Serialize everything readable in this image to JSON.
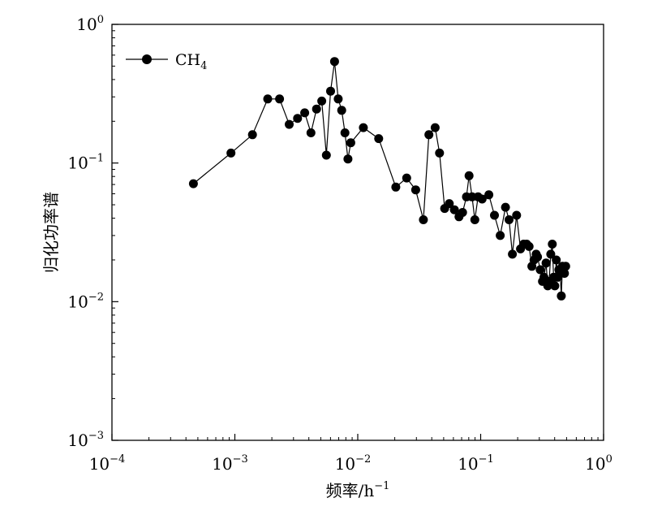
{
  "chart_data": {
    "type": "scatter",
    "mode": "line-with-markers",
    "x_scale": "log",
    "y_scale": "log",
    "xlim": [
      0.0001,
      1
    ],
    "ylim": [
      0.001,
      1
    ],
    "xlabel": "频率/h",
    "xlabel_exponent": "−1",
    "ylabel": "归化功率谱",
    "grid": false,
    "legend_position": "top-left",
    "x_ticks": [
      {
        "base": "10",
        "exp": "−4"
      },
      {
        "base": "10",
        "exp": "−3"
      },
      {
        "base": "10",
        "exp": "−2"
      },
      {
        "base": "10",
        "exp": "−1"
      },
      {
        "base": "10",
        "exp": "0"
      }
    ],
    "y_ticks": [
      {
        "base": "10",
        "exp": "−3"
      },
      {
        "base": "10",
        "exp": "−2"
      },
      {
        "base": "10",
        "exp": "−1"
      },
      {
        "base": "10",
        "exp": "0"
      }
    ],
    "series": [
      {
        "name": "CH",
        "name_subscript": "4",
        "color": "#000000",
        "marker": "filled-circle",
        "x": [
          0.00046,
          0.00093,
          0.00139,
          0.00185,
          0.00231,
          0.00277,
          0.00324,
          0.0037,
          0.00416,
          0.00462,
          0.00509,
          0.00555,
          0.00601,
          0.00647,
          0.00693,
          0.0074,
          0.00786,
          0.00832,
          0.00878,
          0.0111,
          0.0148,
          0.0204,
          0.025,
          0.0296,
          0.0342,
          0.0379,
          0.0426,
          0.0463,
          0.0509,
          0.0555,
          0.0611,
          0.0666,
          0.0712,
          0.0767,
          0.0805,
          0.0851,
          0.0897,
          0.0953,
          0.1027,
          0.1166,
          0.1295,
          0.1443,
          0.1591,
          0.1702,
          0.1813,
          0.1961,
          0.2109,
          0.2238,
          0.2368,
          0.2479,
          0.2608,
          0.2719,
          0.283,
          0.2904,
          0.3052,
          0.3182,
          0.3274,
          0.3404,
          0.3515,
          0.3607,
          0.3718,
          0.3829,
          0.3921,
          0.4014,
          0.4125,
          0.4236,
          0.4328,
          0.4439,
          0.4532,
          0.4624,
          0.4809,
          0.492
        ],
        "y": [
          0.071,
          0.118,
          0.16,
          0.29,
          0.29,
          0.19,
          0.21,
          0.23,
          0.165,
          0.245,
          0.28,
          0.114,
          0.33,
          0.54,
          0.29,
          0.24,
          0.165,
          0.107,
          0.14,
          0.18,
          0.15,
          0.067,
          0.078,
          0.064,
          0.039,
          0.16,
          0.18,
          0.118,
          0.047,
          0.051,
          0.046,
          0.041,
          0.044,
          0.057,
          0.081,
          0.057,
          0.039,
          0.057,
          0.055,
          0.059,
          0.042,
          0.03,
          0.048,
          0.039,
          0.022,
          0.042,
          0.024,
          0.026,
          0.026,
          0.025,
          0.018,
          0.02,
          0.022,
          0.021,
          0.017,
          0.014,
          0.015,
          0.019,
          0.013,
          0.014,
          0.022,
          0.026,
          0.015,
          0.013,
          0.02,
          0.015,
          0.017,
          0.016,
          0.011,
          0.018,
          0.016,
          0.018
        ]
      }
    ]
  }
}
